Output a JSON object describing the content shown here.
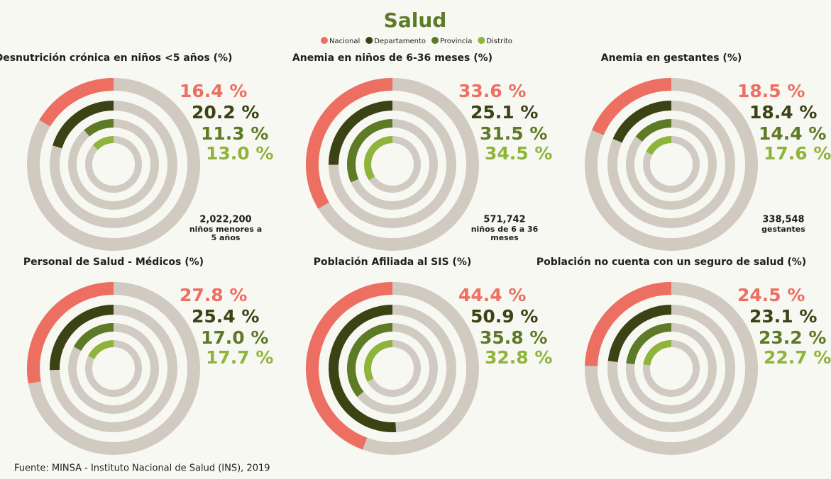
{
  "title": "Salud",
  "source": "Fuente: MINSA - Instituto Nacional de Salud (INS), 2019",
  "chart_data": [
    {
      "type": "radial_bar",
      "title": "Desnutrición crónica en niños <5 años (%)",
      "categories": [
        "Nacional",
        "Departamento",
        "Provincia",
        "Distrito"
      ],
      "colors": [
        "#ec6f62",
        "#3b4214",
        "#5d7a27",
        "#8fb43c"
      ],
      "values": [
        16.4,
        20.2,
        11.3,
        13.0
      ],
      "value_labels": [
        "16.4 %",
        "20.2 %",
        "11.3 %",
        "13.0 %"
      ],
      "ylim": [
        0,
        100
      ],
      "annotation": [
        "2,022,200",
        "niños menores a",
        "5 años"
      ]
    },
    {
      "type": "radial_bar",
      "title": "Anemia en niños de 6-36 meses (%)",
      "categories": [
        "Nacional",
        "Departamento",
        "Provincia",
        "Distrito"
      ],
      "colors": [
        "#ec6f62",
        "#3b4214",
        "#5d7a27",
        "#8fb43c"
      ],
      "values": [
        33.6,
        25.1,
        31.5,
        34.5
      ],
      "value_labels": [
        "33.6 %",
        "25.1 %",
        "31.5 %",
        "34.5 %"
      ],
      "ylim": [
        0,
        100
      ],
      "annotation": [
        "571,742",
        "niños de 6 a 36",
        "meses"
      ]
    },
    {
      "type": "radial_bar",
      "title": "Anemia en gestantes (%)",
      "categories": [
        "Nacional",
        "Departamento",
        "Provincia",
        "Distrito"
      ],
      "colors": [
        "#ec6f62",
        "#3b4214",
        "#5d7a27",
        "#8fb43c"
      ],
      "values": [
        18.5,
        18.4,
        14.4,
        17.6
      ],
      "value_labels": [
        "18.5 %",
        "18.4 %",
        "14.4 %",
        "17.6 %"
      ],
      "ylim": [
        0,
        100
      ],
      "annotation": [
        "338,548",
        "gestantes"
      ]
    },
    {
      "type": "radial_bar",
      "title": "Personal de Salud - Médicos (%)",
      "categories": [
        "Nacional",
        "Departamento",
        "Provincia",
        "Distrito"
      ],
      "colors": [
        "#ec6f62",
        "#3b4214",
        "#5d7a27",
        "#8fb43c"
      ],
      "values": [
        27.8,
        25.4,
        17.0,
        17.7
      ],
      "value_labels": [
        "27.8 %",
        "25.4 %",
        "17.0 %",
        "17.7 %"
      ],
      "ylim": [
        0,
        100
      ]
    },
    {
      "type": "radial_bar",
      "title": "Población Afiliada al SIS (%)",
      "categories": [
        "Nacional",
        "Departamento",
        "Provincia",
        "Distrito"
      ],
      "colors": [
        "#ec6f62",
        "#3b4214",
        "#5d7a27",
        "#8fb43c"
      ],
      "values": [
        44.4,
        50.9,
        35.8,
        32.8
      ],
      "value_labels": [
        "44.4 %",
        "50.9 %",
        "35.8 %",
        "32.8 %"
      ],
      "ylim": [
        0,
        100
      ]
    },
    {
      "type": "radial_bar",
      "title": "Población no cuenta con un seguro de salud (%)",
      "categories": [
        "Nacional",
        "Departamento",
        "Provincia",
        "Distrito"
      ],
      "colors": [
        "#ec6f62",
        "#3b4214",
        "#5d7a27",
        "#8fb43c"
      ],
      "values": [
        24.5,
        23.1,
        23.2,
        22.7
      ],
      "value_labels": [
        "24.5 %",
        "23.1 %",
        "23.2 %",
        "22.7 %"
      ],
      "ylim": [
        0,
        100
      ]
    }
  ]
}
